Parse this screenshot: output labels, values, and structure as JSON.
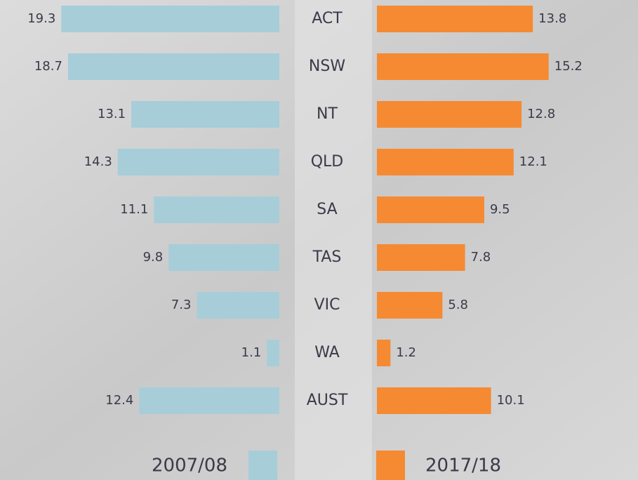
{
  "chart_data": {
    "type": "bar",
    "categories": [
      "ACT",
      "NSW",
      "NT",
      "QLD",
      "SA",
      "TAS",
      "VIC",
      "WA",
      "AUST"
    ],
    "series": [
      {
        "name": "2007/08",
        "color": "#a7cdd9",
        "values": [
          19.3,
          18.7,
          13.1,
          14.3,
          11.1,
          9.8,
          7.3,
          1.1,
          12.4
        ]
      },
      {
        "name": "2017/18",
        "color": "#f58a32",
        "values": [
          13.8,
          15.2,
          12.8,
          12.1,
          9.5,
          7.8,
          5.8,
          1.2,
          10.1
        ]
      }
    ],
    "xlim": [
      0,
      20
    ]
  }
}
